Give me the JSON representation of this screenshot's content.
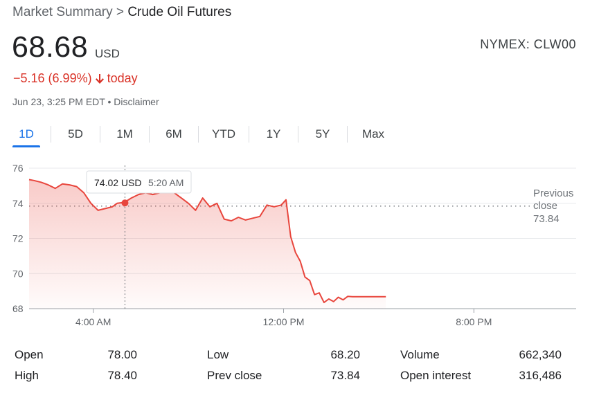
{
  "breadcrumb": {
    "parent": "Market Summary",
    "separator": ">",
    "current": "Crude Oil Futures"
  },
  "quote": {
    "price": "68.68",
    "currency": "USD",
    "exchange": "NYMEX: CLW00",
    "change": "−5.16 (6.99%)",
    "period": "today",
    "timestamp": "Jun 23, 3:25 PM EDT",
    "separator": "•",
    "disclaimer": "Disclaimer"
  },
  "tabs": [
    {
      "label": "1D",
      "active": true
    },
    {
      "label": "5D",
      "active": false
    },
    {
      "label": "1M",
      "active": false
    },
    {
      "label": "6M",
      "active": false
    },
    {
      "label": "YTD",
      "active": false
    },
    {
      "label": "1Y",
      "active": false
    },
    {
      "label": "5Y",
      "active": false
    },
    {
      "label": "Max",
      "active": false
    }
  ],
  "colors": {
    "line": "#e8453c",
    "fill": "#fce8e6",
    "accent": "#1a73e8",
    "negative": "#d93025"
  },
  "chart_data": {
    "type": "area",
    "x_unit": "hours since midnight",
    "y_tick_labels": [
      "76",
      "74",
      "72",
      "70",
      "68"
    ],
    "y_ticks": [
      76,
      74,
      72,
      70,
      68
    ],
    "ylim": [
      68,
      76
    ],
    "x_tick_labels": [
      "4:00 AM",
      "12:00 PM",
      "8:00 PM"
    ],
    "x_ticks": [
      4,
      12,
      20
    ],
    "xlim": [
      1.3,
      24.3
    ],
    "previous_close": {
      "label_line1": "Previous",
      "label_line2": "close",
      "value_label": "73.84",
      "value": 73.84
    },
    "tooltip": {
      "price": "74.02 USD",
      "time": "5:20 AM",
      "x": 5.33,
      "value": 74.02
    },
    "series": [
      {
        "x": [
          1.3,
          1.5,
          1.8,
          2.1,
          2.4,
          2.7,
          3.0,
          3.3,
          3.6,
          3.9,
          4.2,
          4.5,
          4.8,
          5.0,
          5.3,
          5.6,
          5.9,
          6.2,
          6.5,
          6.8,
          7.1,
          7.4,
          7.7,
          8.0,
          8.3,
          8.6,
          8.9,
          9.2,
          9.5,
          9.8,
          10.1,
          10.4,
          10.7,
          11.0,
          11.3,
          11.6,
          11.9,
          12.1,
          12.3,
          12.5,
          12.7,
          12.9,
          13.1,
          13.3,
          13.5,
          13.7,
          13.9,
          14.1,
          14.3,
          14.5,
          14.7,
          14.9,
          15.1,
          15.3,
          15.5,
          15.7,
          15.9,
          16.1,
          16.3
        ],
        "y": [
          75.35,
          75.3,
          75.2,
          75.05,
          74.85,
          75.1,
          75.05,
          74.95,
          74.6,
          74.0,
          73.6,
          73.7,
          73.8,
          74.0,
          74.05,
          74.3,
          74.5,
          74.6,
          74.5,
          74.6,
          74.9,
          74.6,
          74.3,
          74.0,
          73.6,
          74.3,
          73.8,
          74.0,
          73.1,
          73.0,
          73.2,
          73.05,
          73.15,
          73.25,
          73.9,
          73.8,
          73.9,
          74.2,
          72.1,
          71.2,
          70.7,
          69.8,
          69.6,
          68.8,
          68.9,
          68.35,
          68.55,
          68.4,
          68.65,
          68.5,
          68.7,
          68.68,
          68.68,
          68.68,
          68.68,
          68.68,
          68.68,
          68.68,
          68.68
        ]
      }
    ]
  },
  "stats": [
    {
      "label": "Open",
      "value": "78.00"
    },
    {
      "label": "High",
      "value": "78.40"
    },
    {
      "label": "Low",
      "value": "68.20"
    },
    {
      "label": "Prev close",
      "value": "73.84"
    },
    {
      "label": "Volume",
      "value": "662,340"
    },
    {
      "label": "Open interest",
      "value": "316,486"
    }
  ]
}
